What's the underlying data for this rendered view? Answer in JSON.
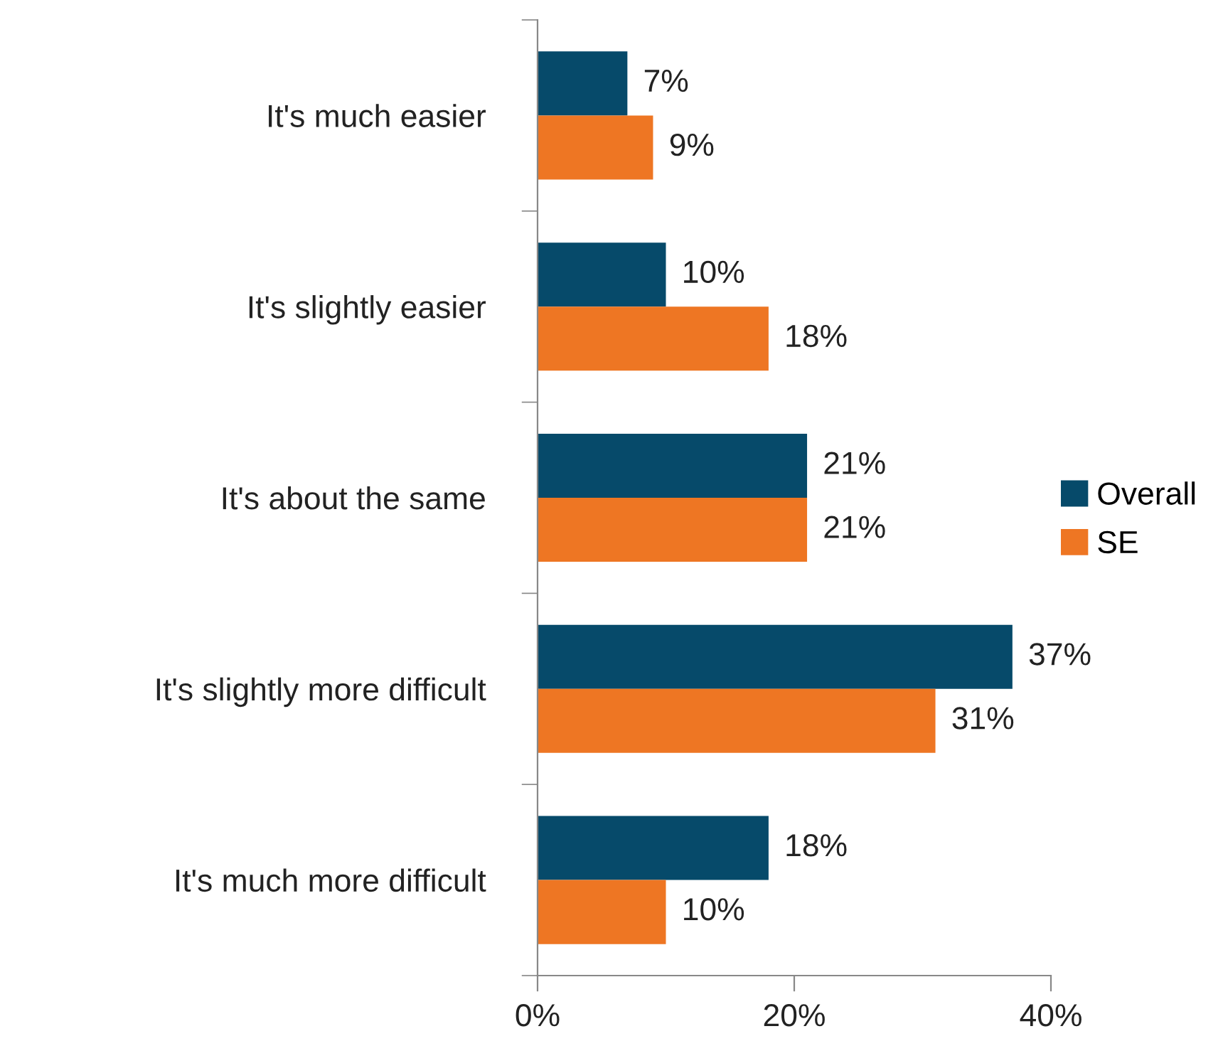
{
  "chart_data": {
    "type": "bar",
    "orientation": "horizontal",
    "categories": [
      "It's much easier",
      "It's slightly easier",
      "It's about the same",
      "It's slightly more difficult",
      "It's much more difficult"
    ],
    "series": [
      {
        "name": "Overall",
        "color": "#064a6a",
        "values": [
          7,
          10,
          21,
          37,
          18
        ],
        "value_labels": [
          "7%",
          "10%",
          "21%",
          "37%",
          "18%"
        ]
      },
      {
        "name": "SE",
        "color": "#ee7623",
        "values": [
          9,
          18,
          21,
          31,
          10
        ],
        "value_labels": [
          "9%",
          "18%",
          "21%",
          "31%",
          "10%"
        ]
      }
    ],
    "xlim": [
      0,
      40
    ],
    "xticks": [
      {
        "value": 0,
        "label": "0%"
      },
      {
        "value": 20,
        "label": "20%"
      },
      {
        "value": 40,
        "label": "40%"
      }
    ],
    "grid": false,
    "legend": "right"
  }
}
